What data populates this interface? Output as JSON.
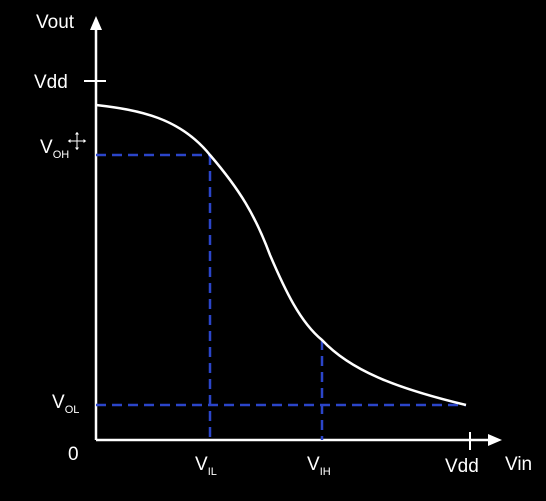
{
  "title": "",
  "axes": {
    "x_label": "Vin",
    "y_label": "Vout",
    "origin_label": "0",
    "x_end_label": "Vdd",
    "y_top_label": "Vdd"
  },
  "levels": {
    "voh": {
      "main": "V",
      "sub": "OH"
    },
    "vol": {
      "main": "V",
      "sub": "OL"
    },
    "vil": {
      "main": "V",
      "sub": "IL"
    },
    "vih": {
      "main": "V",
      "sub": "IH"
    }
  },
  "colors": {
    "background": "#000000",
    "axis": "#ffffff",
    "curve": "#ffffff",
    "guide_lines": "#2b45c9",
    "text": "#ffffff"
  },
  "icons": {
    "cursor": "move-cursor-icon"
  }
}
